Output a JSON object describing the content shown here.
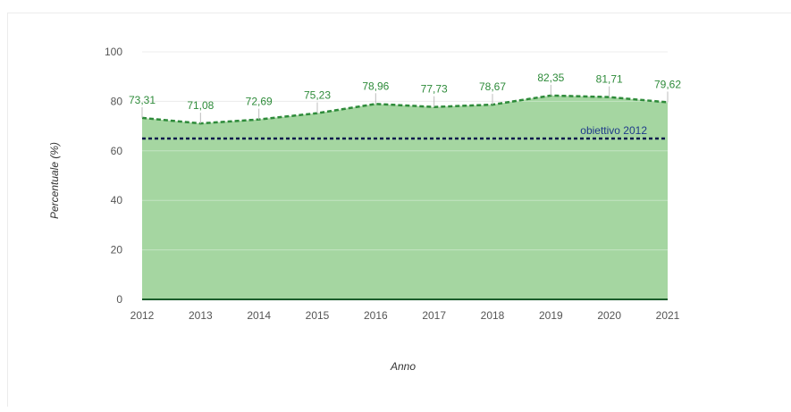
{
  "chart_data": {
    "type": "area",
    "x": [
      "2012",
      "2013",
      "2014",
      "2015",
      "2016",
      "2017",
      "2018",
      "2019",
      "2020",
      "2021"
    ],
    "series": [
      {
        "values": [
          73.31,
          71.08,
          72.69,
          75.23,
          78.96,
          77.73,
          78.67,
          82.35,
          81.71,
          79.62
        ],
        "labels": [
          "73,31",
          "71,08",
          "72,69",
          "75,23",
          "78,96",
          "77,73",
          "78,67",
          "82,35",
          "81,71",
          "79,62"
        ]
      }
    ],
    "reference_line": {
      "label": "obiettivo 2012",
      "value": 65
    },
    "xlabel": "Anno",
    "ylabel": "Percentuale (%)",
    "ylim": [
      0,
      100
    ],
    "yticks": [
      "0",
      "20",
      "40",
      "60",
      "80",
      "100"
    ],
    "grid": true,
    "colors": {
      "area_fill": "#a5d6a1",
      "line": "#2e8b3a",
      "reference": "#0d1b4c",
      "label_text": "#2e8b3a",
      "axis": "#1a5c2a",
      "grid": "#e2e2e2"
    }
  }
}
